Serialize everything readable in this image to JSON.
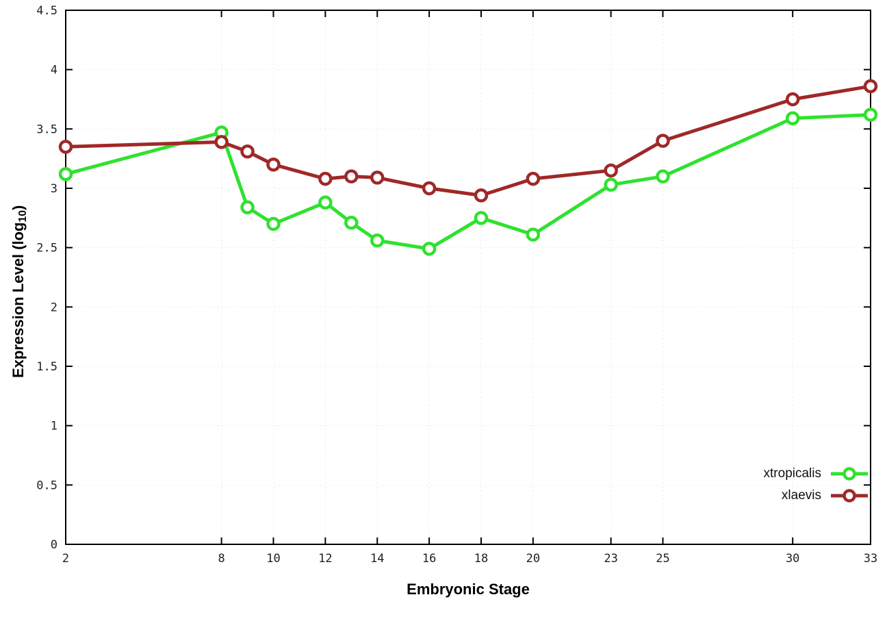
{
  "chart_data": {
    "type": "line",
    "x": [
      2,
      8,
      9,
      10,
      12,
      13,
      14,
      16,
      18,
      20,
      23,
      25,
      30,
      33
    ],
    "series": [
      {
        "name": "xtropicalis",
        "color": "#2ee22e",
        "values": [
          3.12,
          3.47,
          2.84,
          2.7,
          2.88,
          2.71,
          2.56,
          2.49,
          2.75,
          2.61,
          3.03,
          3.1,
          3.59,
          3.62
        ]
      },
      {
        "name": "xlaevis",
        "color": "#a02828",
        "values": [
          3.35,
          3.39,
          3.31,
          3.2,
          3.08,
          3.1,
          3.09,
          3.0,
          2.94,
          3.08,
          3.15,
          3.4,
          3.75,
          3.86
        ]
      }
    ],
    "title": "",
    "xlabel": "Embryonic Stage",
    "ylabel": "Expression Level (log10)",
    "ylabel_parts": {
      "prefix": "Expression Level (log",
      "sub": "10",
      "suffix": ")"
    },
    "xlim": [
      2,
      33
    ],
    "ylim": [
      0,
      4.5
    ],
    "xticks": [
      2,
      8,
      10,
      12,
      14,
      16,
      18,
      20,
      23,
      25,
      30,
      33
    ],
    "yticks": [
      0,
      0.5,
      1,
      1.5,
      2,
      2.5,
      3,
      3.5,
      4,
      4.5
    ],
    "ytick_labels": [
      "0",
      "0.5",
      "1",
      "1.5",
      "2",
      "2.5",
      "3",
      "3.5",
      "4",
      "4.5"
    ],
    "grid": true,
    "legend_position": "bottom-right",
    "marker": "open-circle",
    "colors": {
      "border": "#000000",
      "grid": "#d9d9d9",
      "tick_text": "#222222"
    }
  }
}
